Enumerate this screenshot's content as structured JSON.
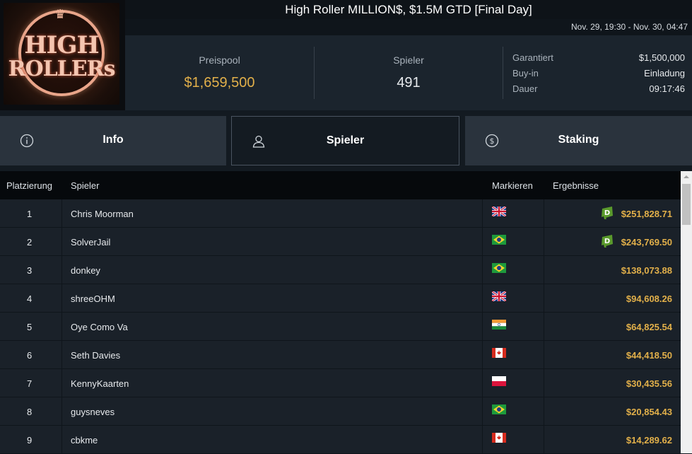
{
  "tournament": {
    "title": "High Roller MILLION$, $1.5M GTD [Final Day]",
    "date_range": "Nov. 29, 19:30 - Nov. 30, 04:47"
  },
  "logo": {
    "line1": "HIGH",
    "line2": "ROLLERs"
  },
  "stats": {
    "prizepool_label": "Preispool",
    "prizepool_value": "$1,659,500",
    "players_label": "Spieler",
    "players_value": "491",
    "details": [
      {
        "label": "Garantiert",
        "value": "$1,500,000"
      },
      {
        "label": "Buy-in",
        "value": "Einladung"
      },
      {
        "label": "Dauer",
        "value": "09:17:46"
      }
    ]
  },
  "tabs": [
    {
      "label": "Info",
      "icon": "info-icon"
    },
    {
      "label": "Spieler",
      "icon": "user-icon"
    },
    {
      "label": "Staking",
      "icon": "dollar-coin-icon"
    }
  ],
  "table": {
    "headers": {
      "place": "Platzierung",
      "player": "Spieler",
      "flag": "Markieren",
      "result": "Ergebnisse"
    },
    "rows": [
      {
        "place": "1",
        "player": "Chris Moorman",
        "country": "gb",
        "result": "$251,828.71",
        "badge": true
      },
      {
        "place": "2",
        "player": "SolverJail",
        "country": "br",
        "result": "$243,769.50",
        "badge": true
      },
      {
        "place": "3",
        "player": "donkey",
        "country": "br",
        "result": "$138,073.88",
        "badge": false
      },
      {
        "place": "4",
        "player": "shreeOHM",
        "country": "gb",
        "result": "$94,608.26",
        "badge": false
      },
      {
        "place": "5",
        "player": "Oye Como Va",
        "country": "in",
        "result": "$64,825.54",
        "badge": false
      },
      {
        "place": "6",
        "player": "Seth Davies",
        "country": "ca",
        "result": "$44,418.50",
        "badge": false
      },
      {
        "place": "7",
        "player": "KennyKaarten",
        "country": "pl",
        "result": "$30,435.56",
        "badge": false
      },
      {
        "place": "8",
        "player": "guysneves",
        "country": "br",
        "result": "$20,854.43",
        "badge": false
      },
      {
        "place": "9",
        "player": "cbkme",
        "country": "ca",
        "result": "$14,289.62",
        "badge": false
      }
    ]
  },
  "colors": {
    "prize": "#e2b04a",
    "badge": "#5a9a2c"
  }
}
